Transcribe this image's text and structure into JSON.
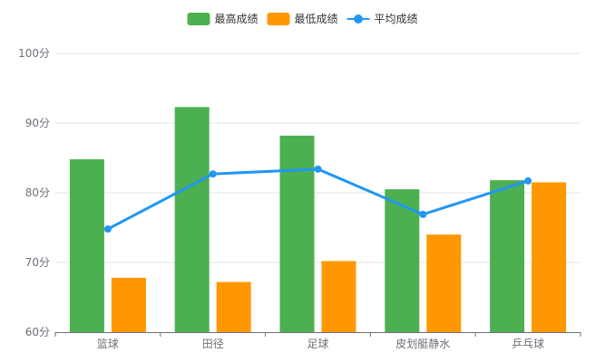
{
  "chart_data": {
    "type": "bar",
    "categories": [
      "篮球",
      "田径",
      "足球",
      "皮划艇静水",
      "乒乓球"
    ],
    "series": [
      {
        "name": "最高成绩",
        "kind": "bar",
        "color": "#4CAF50",
        "values": [
          84.8,
          92.3,
          88.2,
          80.5,
          81.8
        ]
      },
      {
        "name": "最低成绩",
        "kind": "bar",
        "color": "#FF9800",
        "values": [
          67.8,
          67.2,
          70.2,
          74.0,
          81.5
        ]
      },
      {
        "name": "平均成绩",
        "kind": "line",
        "color": "#2196F3",
        "values": [
          74.8,
          82.7,
          83.4,
          76.9,
          81.7
        ]
      }
    ],
    "ylim": [
      60,
      100
    ],
    "yticks": [
      60,
      70,
      80,
      90,
      100
    ],
    "ytick_suffix": "分",
    "legend_position": "top-center",
    "grid": true,
    "axis_color": "#6E7079",
    "grid_color": "#E0E6F1"
  }
}
